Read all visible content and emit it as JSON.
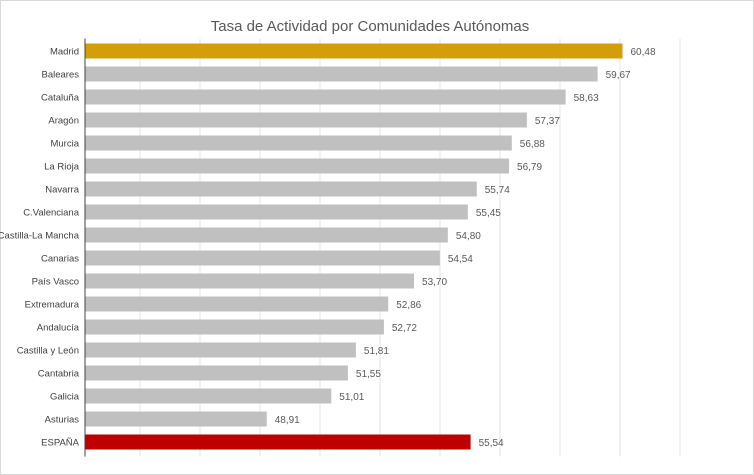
{
  "chart_data": {
    "type": "bar",
    "orientation": "horizontal",
    "title": "Tasa de Actividad  por Comunidades  Autónomas",
    "xlabel": "",
    "ylabel": "",
    "xlim": [
      43,
      63
    ],
    "grid": true,
    "legend": "none",
    "categories": [
      "Madrid",
      "Baleares",
      "Cataluña",
      "Aragón",
      "Murcia",
      "La Rioja",
      "Navarra",
      "C.Valenciana",
      "Castilla-La Mancha",
      "Canarias",
      "País Vasco",
      "Extremadura",
      "Andalucía",
      "Castilla y León",
      "Cantabria",
      "Galicia",
      "Asturias",
      "ESPAÑA"
    ],
    "values": [
      60.48,
      59.67,
      58.63,
      57.37,
      56.88,
      56.79,
      55.74,
      55.45,
      54.8,
      54.54,
      53.7,
      52.86,
      52.72,
      51.81,
      51.55,
      51.01,
      48.91,
      55.54
    ],
    "value_labels": [
      "60,48",
      "59,67",
      "58,63",
      "57,37",
      "56,88",
      "56,79",
      "55,74",
      "55,45",
      "54,80",
      "54,54",
      "53,70",
      "52,86",
      "52,72",
      "51,81",
      "51,55",
      "51,01",
      "48,91",
      "55,54"
    ],
    "colors": {
      "default": "#c0c0c0",
      "highlight_first": "#d39e0a",
      "highlight_total": "#c00000",
      "grid": "#e6e6e6",
      "text": "#404040"
    }
  }
}
